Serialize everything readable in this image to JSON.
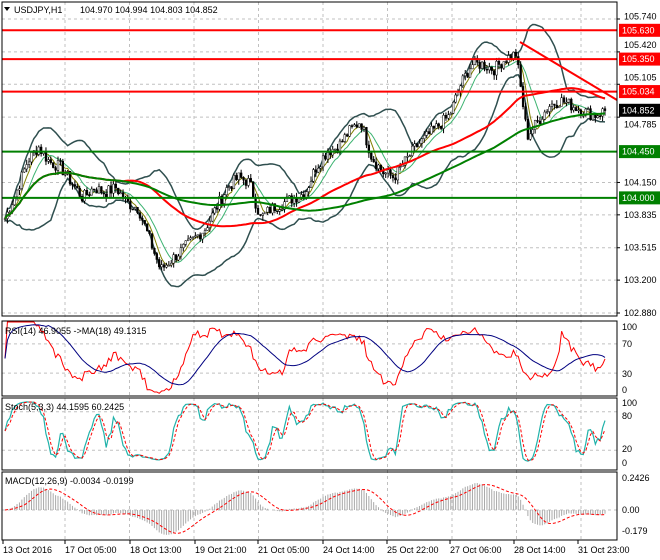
{
  "header": {
    "symbol": "USDJPY,H1",
    "ohlc": "104.970 104.994 104.803 104.852"
  },
  "chart_data": [
    {
      "type": "candlestick",
      "title": "USDJPY,H1",
      "ylim": [
        102.88,
        105.74
      ],
      "yticks": [
        "105.740",
        "105.420",
        "105.105",
        "104.785",
        "104.150",
        "103.835",
        "103.515",
        "103.200",
        "102.880"
      ],
      "levels": [
        {
          "value": "105.630",
          "color": "#ff0000"
        },
        {
          "value": "105.350",
          "color": "#ff0000"
        },
        {
          "value": "105.034",
          "color": "#ff0000"
        },
        {
          "value": "104.450",
          "color": "#008000"
        },
        {
          "value": "104.000",
          "color": "#008000"
        }
      ],
      "current_price": "104.852",
      "close_path": [
        103.8,
        104.05,
        104.35,
        104.5,
        104.35,
        104.3,
        104.15,
        104.0,
        104.1,
        104.05,
        104.1,
        103.95,
        103.9,
        103.6,
        103.3,
        103.4,
        103.5,
        103.6,
        103.7,
        103.9,
        104.1,
        104.2,
        104.15,
        103.8,
        103.9,
        103.95,
        104.0,
        104.05,
        104.3,
        104.45,
        104.5,
        104.65,
        104.75,
        104.4,
        104.25,
        104.2,
        104.35,
        104.5,
        104.6,
        104.7,
        104.8,
        105.1,
        105.3,
        105.3,
        105.25,
        105.35,
        105.4,
        104.6,
        104.75,
        104.9,
        104.95,
        104.9,
        104.85,
        104.8,
        104.85
      ]
    },
    {
      "type": "line",
      "title": "RSI(14) 46.9055  ->MA(18) 49.1315",
      "yticks": [
        "100",
        "70",
        "30",
        "0"
      ],
      "ylim": [
        0,
        100
      ]
    },
    {
      "type": "line",
      "title": "Stoch(5,3,3) 44.1595 60.2425",
      "yticks": [
        "100",
        "80",
        "20",
        "0"
      ],
      "ylim": [
        0,
        100
      ]
    },
    {
      "type": "bar",
      "title": "MACD(12,26,9) -0.0034 -0.0199",
      "yticks": [
        "0.2426",
        "0.00",
        "-0.179"
      ],
      "ylim": [
        -0.179,
        0.2426
      ]
    }
  ],
  "xaxis": [
    "13 Oct 2016",
    "17 Oct 05:00",
    "18 Oct 13:00",
    "19 Oct 21:00",
    "21 Oct 05:00",
    "24 Oct 14:00",
    "25 Oct 22:00",
    "27 Oct 06:00",
    "28 Oct 14:00",
    "31 Oct 23:00"
  ],
  "colors": {
    "bull": "#000000",
    "ma_fast": "#ff0000",
    "ma_slow": "#008000",
    "bands": "#2f4f4f"
  }
}
